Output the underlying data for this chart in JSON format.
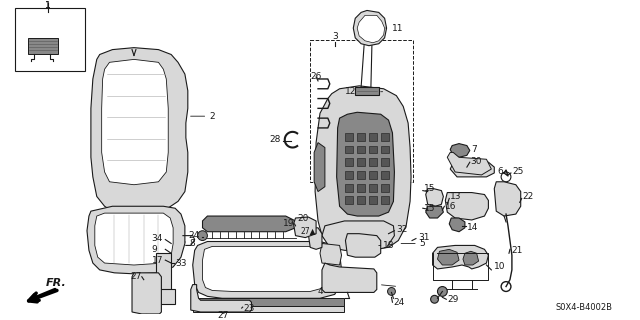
{
  "bg_color": "#ffffff",
  "diagram_code": "S0X4-B4002B",
  "line_color": "#1a1a1a",
  "gray_fill": "#d8d8d8",
  "dark_fill": "#888888",
  "lw": 0.8
}
